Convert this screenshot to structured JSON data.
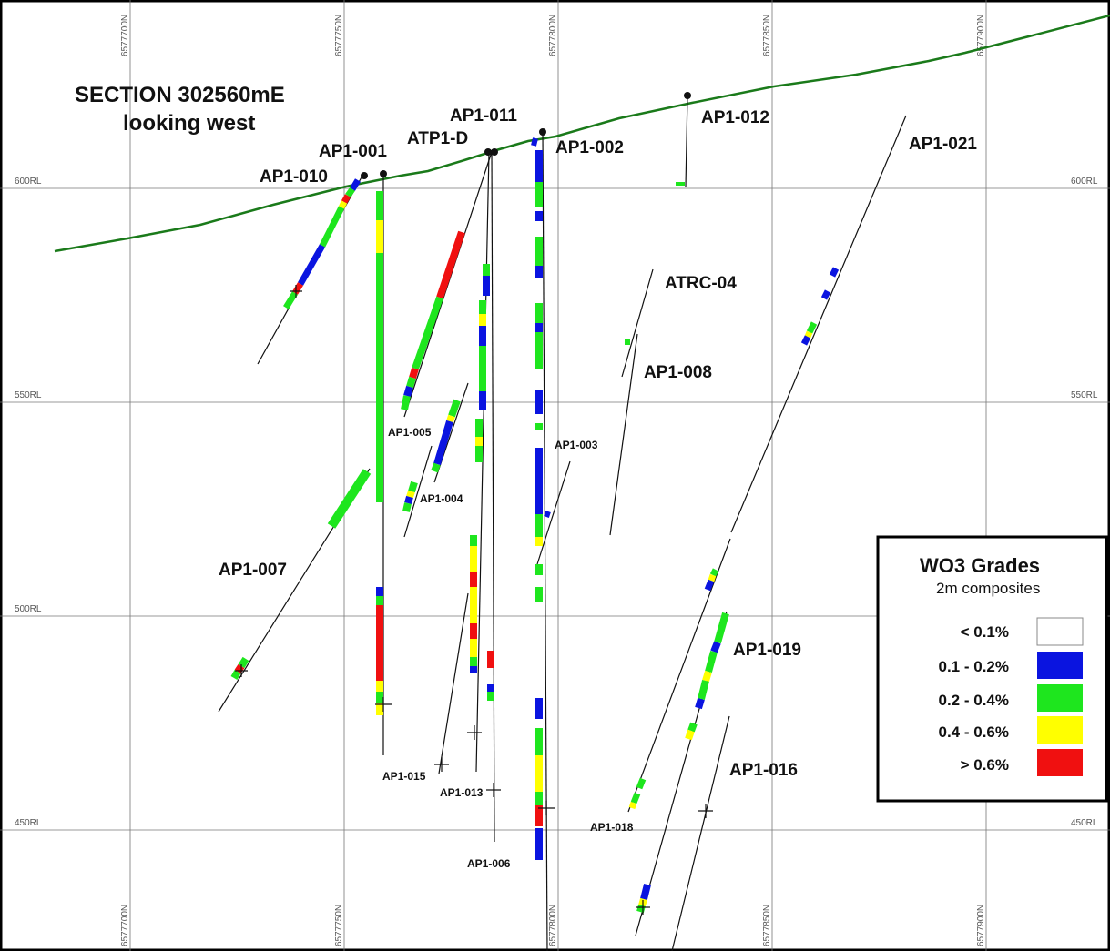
{
  "title_line1": "SECTION 302560mE",
  "title_line2": "looking west",
  "surface_color": "#1a7a1a",
  "grid": {
    "northings": [
      "6577700N",
      "6577750N",
      "6577800N",
      "6577850N",
      "6577900N"
    ],
    "rls": [
      "600RL",
      "550RL",
      "500RL",
      "450RL"
    ]
  },
  "legend": {
    "title": "WO3 Grades",
    "subtitle": "2m composites",
    "items": [
      {
        "label": "< 0.1%",
        "color": "#ffffff"
      },
      {
        "label": "0.1 - 0.2%",
        "color": "#0a14e0"
      },
      {
        "label": "0.2 - 0.4%",
        "color": "#1ee61e"
      },
      {
        "label": "0.4 - 0.6%",
        "color": "#ffff00"
      },
      {
        "label": "> 0.6%",
        "color": "#f01010"
      }
    ]
  },
  "holes": [
    {
      "name": "AP1-001"
    },
    {
      "name": "AP1-010"
    },
    {
      "name": "ATP1-D"
    },
    {
      "name": "AP1-011"
    },
    {
      "name": "AP1-002"
    },
    {
      "name": "AP1-012"
    },
    {
      "name": "AP1-021"
    },
    {
      "name": "ATRC-04"
    },
    {
      "name": "AP1-008"
    },
    {
      "name": "AP1-005"
    },
    {
      "name": "AP1-004"
    },
    {
      "name": "AP1-003"
    },
    {
      "name": "AP1-007"
    },
    {
      "name": "AP1-015"
    },
    {
      "name": "AP1-013"
    },
    {
      "name": "AP1-006"
    },
    {
      "name": "AP1-018"
    },
    {
      "name": "AP1-019"
    },
    {
      "name": "AP1-016"
    }
  ]
}
